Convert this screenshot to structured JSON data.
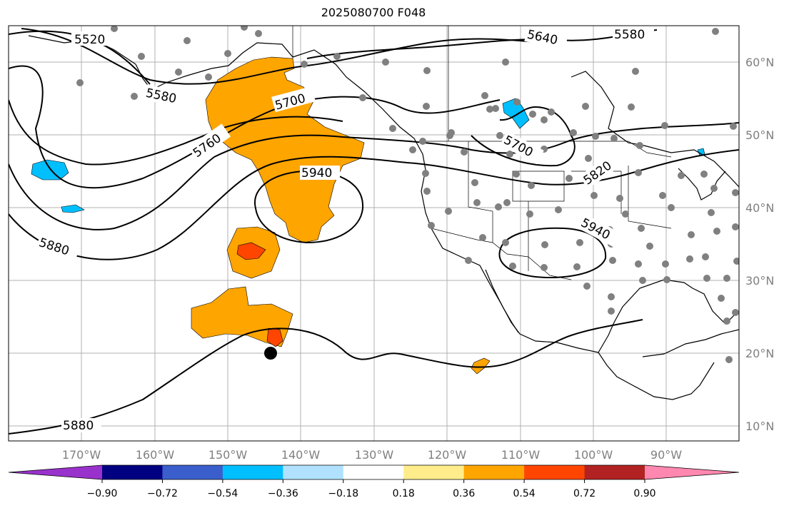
{
  "title": "2025080700 F048",
  "lon_labels": [
    "170°W",
    "160°W",
    "150°W",
    "140°W",
    "130°W",
    "120°W",
    "110°W",
    "100°W",
    "90°W"
  ],
  "lat_labels": [
    "60°N",
    "50°N",
    "40°N",
    "30°N",
    "20°N",
    "10°N"
  ],
  "contour_labels": [
    "5520",
    "5580",
    "5640",
    "5580",
    "5700",
    "5760",
    "5940",
    "5700",
    "5820",
    "5940",
    "5880",
    "5880"
  ],
  "colorbar": {
    "ticks": [
      "−0.90",
      "−0.72",
      "−0.54",
      "−0.36",
      "−0.18",
      "0.18",
      "0.36",
      "0.54",
      "0.72",
      "0.90"
    ],
    "colors": [
      "#9932cc",
      "#000080",
      "#3a5fcd",
      "#00bfff",
      "#b0e2ff",
      "#ffffff",
      "#ffec8b",
      "#ffa500",
      "#ff4500",
      "#b22222",
      "#ff88b0"
    ]
  },
  "colors": {
    "positive_fill": "#ffa500",
    "strong_positive_fill": "#ff4500",
    "negative_fill": "#00bfff",
    "station_dot": "#808080",
    "grid": "#b0b0b0"
  }
}
